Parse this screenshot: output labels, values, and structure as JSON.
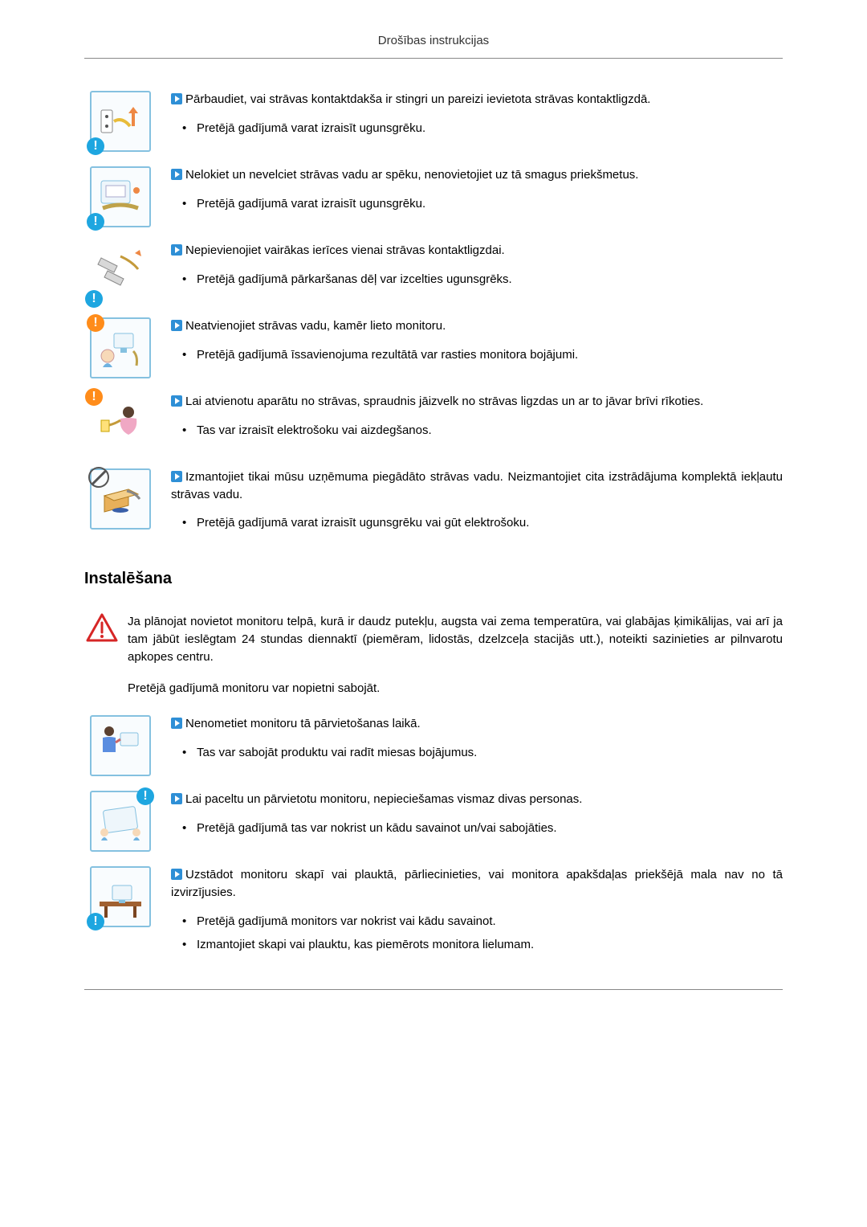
{
  "header": {
    "title": "Drošības instrukcijas"
  },
  "colors": {
    "icon_border": "#85c1e0",
    "badge_blue": "#1ea6e0",
    "badge_orange": "#ff8c1a",
    "arrow_fill": "#2e8fd6",
    "warning_red": "#d62626",
    "rule": "#888888"
  },
  "items1": [
    {
      "headline": "Pārbaudiet, vai strāvas kontaktdakša ir stingri un pareizi ievietota strāvas kontaktligzdā.",
      "bullets": [
        "Pretējā gadījumā varat izraisīt ugunsgrēku."
      ]
    },
    {
      "headline": "Nelokiet un nevelciet strāvas vadu ar spēku, nenovietojiet uz tā smagus priekšmetus.",
      "bullets": [
        "Pretējā gadījumā varat izraisīt ugunsgrēku."
      ]
    },
    {
      "headline": "Nepievienojiet vairākas ierīces vienai strāvas kontaktligzdai.",
      "bullets": [
        "Pretējā gadījumā pārkaršanas dēļ var izcelties ugunsgrēks."
      ]
    },
    {
      "headline": "Neatvienojiet strāvas vadu, kamēr lieto monitoru.",
      "bullets": [
        "Pretējā gadījumā īssavienojuma rezultātā var rasties monitora bojājumi."
      ]
    },
    {
      "headline": "Lai atvienotu aparātu no strāvas, spraudnis jāizvelk no strāvas ligzdas un ar to jāvar brīvi rīkoties.",
      "bullets": [
        "Tas var izraisīt elektrošoku vai aizdegšanos."
      ]
    },
    {
      "headline": "Izmantojiet tikai mūsu uzņēmuma piegādāto strāvas vadu. Neizmantojiet cita izstrādājuma komplektā iekļautu strāvas vadu.",
      "bullets": [
        "Pretējā gadījumā varat izraisīt ugunsgrēku vai gūt elektrošoku."
      ]
    }
  ],
  "section2": {
    "title": "Instalēšana",
    "warning_main": "Ja plānojat novietot monitoru telpā, kurā ir daudz putekļu, augsta vai zema temperatūra, vai glabājas ķimikālijas, vai arī ja tam jābūt ieslēgtam 24 stundas diennaktī (piemēram, lidostās, dzelzceļa stacijās utt.), noteikti sazinieties ar pilnvarotu apkopes centru.",
    "warning_sub": "Pretējā gadījumā monitoru var nopietni sabojāt."
  },
  "items2": [
    {
      "headline": "Nenometiet monitoru tā pārvietošanas laikā.",
      "bullets": [
        "Tas var sabojāt produktu vai radīt miesas bojājumus."
      ]
    },
    {
      "headline": "Lai paceltu un pārvietotu monitoru, nepieciešamas vismaz divas personas.",
      "bullets": [
        "Pretējā gadījumā tas var nokrist un kādu savainot un/vai sabojāties."
      ]
    },
    {
      "headline": "Uzstādot monitoru skapī vai plauktā, pārliecinieties, vai monitora apakšdaļas priekšējā mala nav no tā izvirzījusies.",
      "bullets": [
        "Pretējā gadījumā monitors var nokrist vai kādu savainot.",
        "Izmantojiet skapi vai plauktu, kas piemērots monitora lielumam."
      ]
    }
  ]
}
